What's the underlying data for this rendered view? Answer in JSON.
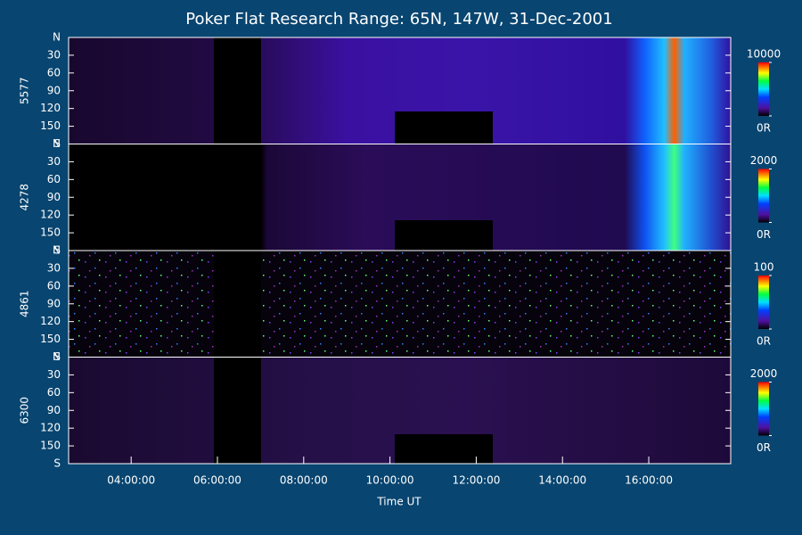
{
  "chart_data": {
    "type": "keogram",
    "title": "Poker Flat Research Range: 65N, 147W, 31-Dec-2001",
    "xlabel": "Time UT",
    "xlim": [
      2.55,
      17.9
    ],
    "xticks": [
      {
        "value": 4,
        "label": "04:00:00"
      },
      {
        "value": 6,
        "label": "06:00:00"
      },
      {
        "value": 8,
        "label": "08:00:00"
      },
      {
        "value": 10,
        "label": "10:00:00"
      },
      {
        "value": 12,
        "label": "12:00:00"
      },
      {
        "value": 14,
        "label": "14:00:00"
      },
      {
        "value": 16,
        "label": "16:00:00"
      }
    ],
    "ylim": [
      0,
      180
    ],
    "yticks": [
      {
        "value": 0,
        "label": "N"
      },
      30,
      60,
      90,
      120,
      150,
      {
        "value": 180,
        "label": "S"
      }
    ],
    "panels": [
      {
        "label": "5577",
        "clim": [
          0,
          10000
        ],
        "cticks": [
          {
            "value": 0,
            "label": "0R"
          },
          10000
        ]
      },
      {
        "label": "4278",
        "clim": [
          0,
          2000
        ],
        "cticks": [
          {
            "value": 0,
            "label": "0R"
          },
          2000
        ]
      },
      {
        "label": "4861",
        "clim": [
          0,
          100
        ],
        "cticks": [
          {
            "value": 0,
            "label": "0R"
          },
          100
        ]
      },
      {
        "label": "6300",
        "clim": [
          0,
          2000
        ],
        "cticks": [
          {
            "value": 0,
            "label": "0R"
          },
          2000
        ]
      }
    ]
  }
}
